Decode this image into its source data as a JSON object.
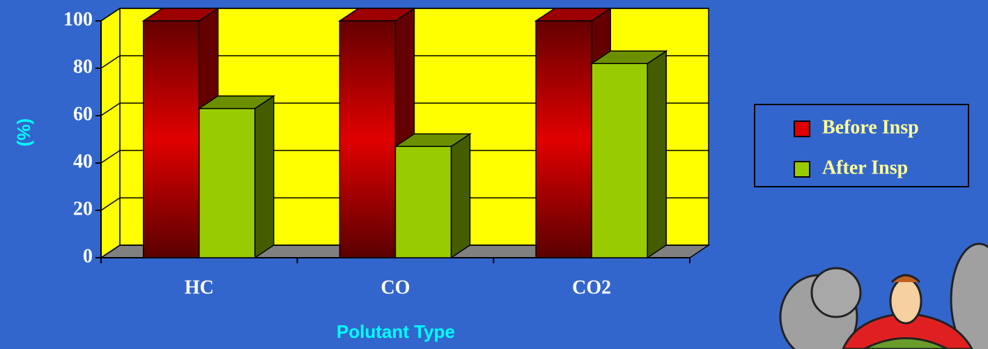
{
  "chart_data": {
    "type": "bar3d",
    "categories": [
      "HC",
      "CO",
      "CO2"
    ],
    "series": [
      {
        "name": "Before Insp",
        "color": "#e00000",
        "shading": true,
        "values": [
          100,
          100,
          100
        ]
      },
      {
        "name": "After Insp",
        "color": "#99cc00",
        "shading": false,
        "values": [
          63,
          47,
          82
        ]
      }
    ],
    "ylim": [
      0,
      100
    ],
    "yticks": [
      0,
      20,
      40,
      60,
      80,
      100
    ],
    "grid": true,
    "x_label": "Polutant Type",
    "y_label": "(%)",
    "legend": "right",
    "wall_color": "#ffff00",
    "floor_color": "#808080"
  }
}
